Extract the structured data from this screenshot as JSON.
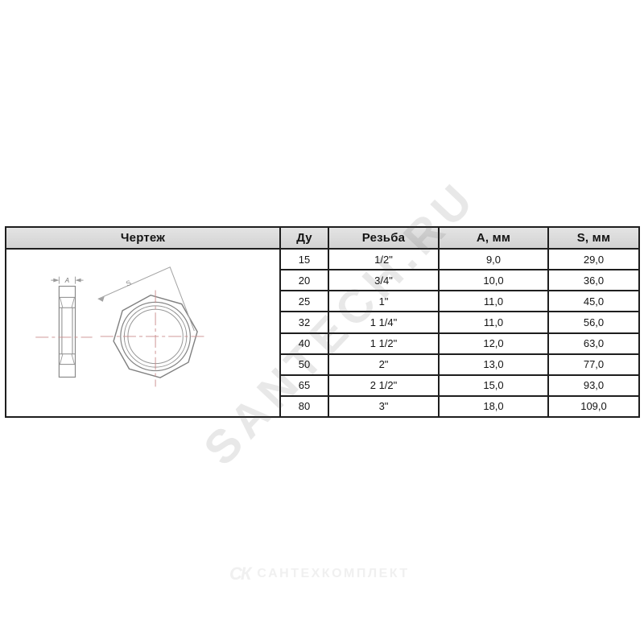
{
  "page": {
    "background": "#ffffff"
  },
  "table": {
    "headers": [
      "Чертеж",
      "Ду",
      "Резьба",
      "А, мм",
      "S, мм"
    ],
    "rows": [
      {
        "du": "15",
        "thread": "1/2\"",
        "a_mm": "9,0",
        "s_mm": "29,0"
      },
      {
        "du": "20",
        "thread": "3/4\"",
        "a_mm": "10,0",
        "s_mm": "36,0"
      },
      {
        "du": "25",
        "thread": "1\"",
        "a_mm": "11,0",
        "s_mm": "45,0"
      },
      {
        "du": "32",
        "thread": "1 1/4\"",
        "a_mm": "11,0",
        "s_mm": "56,0"
      },
      {
        "du": "40",
        "thread": "1 1/2\"",
        "a_mm": "12,0",
        "s_mm": "63,0"
      },
      {
        "du": "50",
        "thread": "2\"",
        "a_mm": "13,0",
        "s_mm": "77,0"
      },
      {
        "du": "65",
        "thread": "2 1/2\"",
        "a_mm": "15,0",
        "s_mm": "93,0"
      },
      {
        "du": "80",
        "thread": "3\"",
        "a_mm": "18,0",
        "s_mm": "109,0"
      }
    ],
    "colors": {
      "header_bg": "#d9d9d9",
      "border": "#1e1e1e",
      "text": "#141414"
    }
  },
  "drawing": {
    "dim_a_label": "A",
    "dim_s_label": "S",
    "colors": {
      "line": "#8a8a8a",
      "centerline": "#c98b8b"
    }
  },
  "watermark": {
    "text": "SANTECH.RU",
    "color": "rgba(80,80,80,0.13)"
  },
  "brand": {
    "mark": "СК",
    "text": "САНТЕХКОМПЛЕКТ",
    "color": "#f0f0f0"
  }
}
